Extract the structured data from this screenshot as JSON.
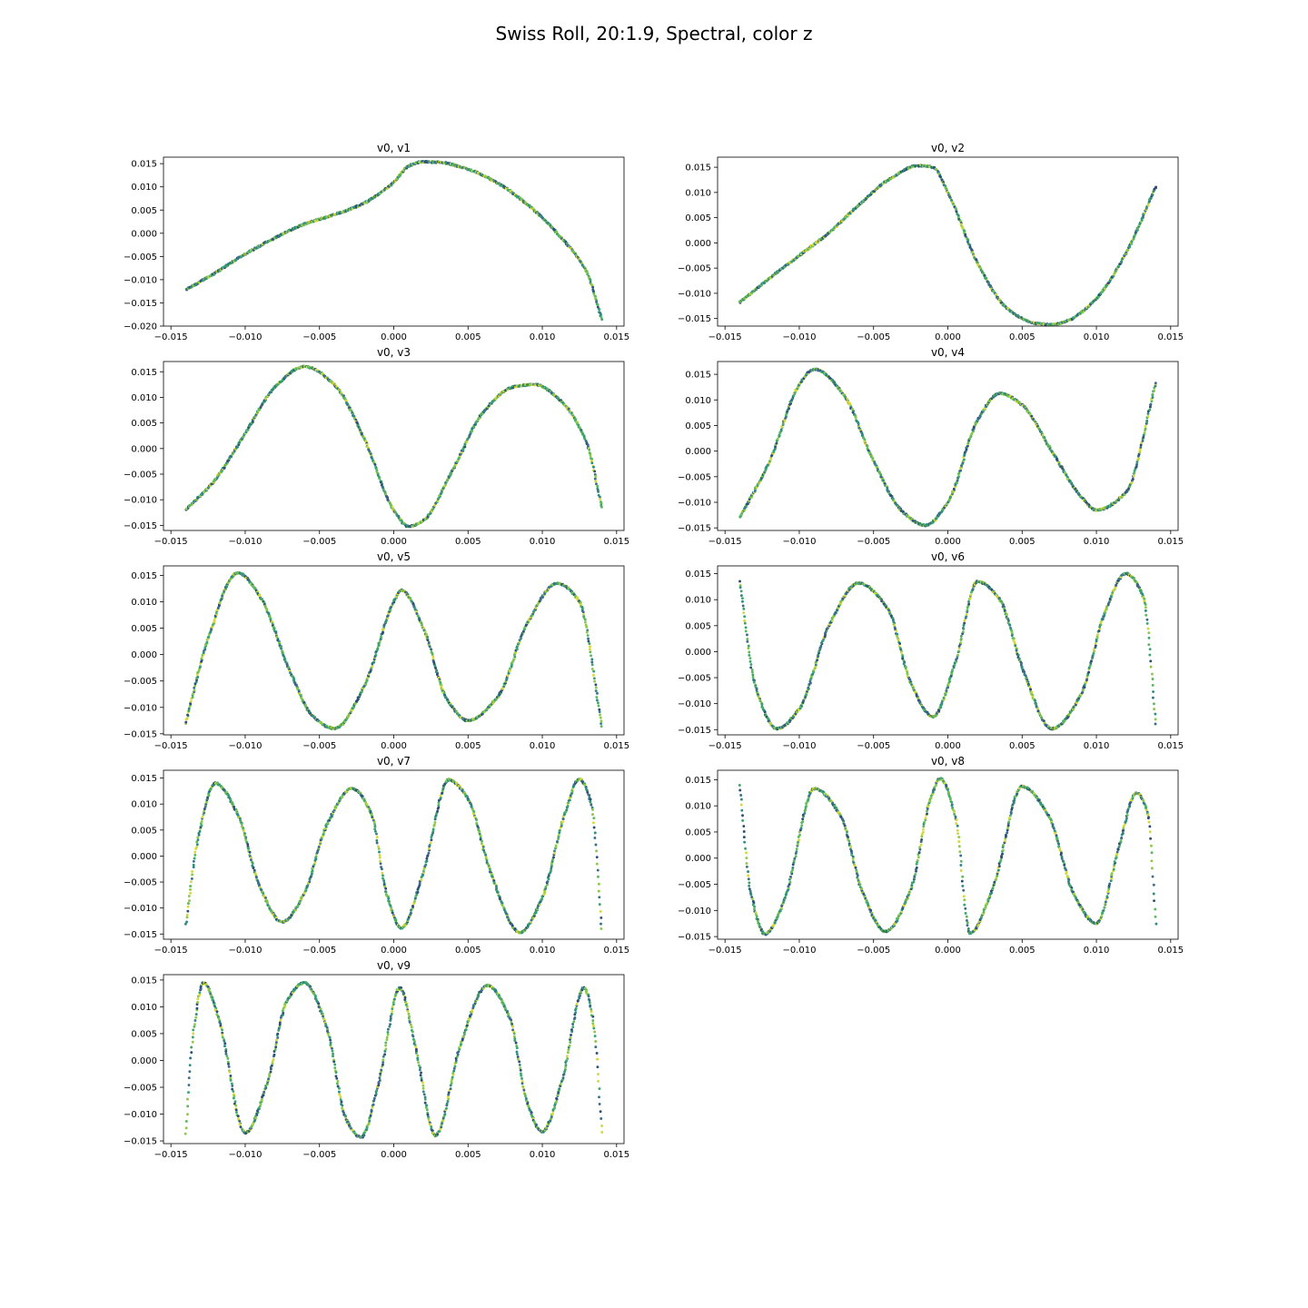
{
  "figure": {
    "title": "Swiss Roll, 20:1.9, Spectral, color z",
    "point_colors": [
      "#2d4f73",
      "#3b6e8a",
      "#2f8c7f",
      "#3aa56c",
      "#5cb85c",
      "#8cc94a",
      "#d4d83a"
    ]
  },
  "chart_data": [
    {
      "type": "scatter",
      "title": "v0, v1",
      "xlim": [
        -0.0155,
        0.0155
      ],
      "ylim": [
        -0.02,
        0.0164
      ],
      "xticks": [
        "-0.015",
        "-0.010",
        "-0.005",
        "0.000",
        "0.005",
        "0.010",
        "0.015"
      ],
      "yticks": [
        "-0.020",
        "-0.015",
        "-0.010",
        "-0.005",
        "0.000",
        "0.005",
        "0.010",
        "0.015"
      ],
      "x": [
        -0.014,
        -0.012,
        -0.01,
        -0.008,
        -0.006,
        -0.004,
        -0.002,
        0.0,
        0.001,
        0.002,
        0.003,
        0.005,
        0.007,
        0.009,
        0.011,
        0.013,
        0.014
      ],
      "y": [
        -0.0122,
        -0.0085,
        -0.0045,
        -0.001,
        0.002,
        0.004,
        0.0065,
        0.011,
        0.0145,
        0.0154,
        0.0153,
        0.0138,
        0.0108,
        0.0062,
        0.0,
        -0.0085,
        -0.0185
      ]
    },
    {
      "type": "scatter",
      "title": "v0, v2",
      "xlim": [
        -0.0155,
        0.0155
      ],
      "ylim": [
        -0.0165,
        0.017
      ],
      "xticks": [
        "-0.015",
        "-0.010",
        "-0.005",
        "0.000",
        "0.005",
        "0.010",
        "0.015"
      ],
      "yticks": [
        "-0.015",
        "-0.010",
        "-0.005",
        "0.000",
        "0.005",
        "0.010",
        "0.015"
      ],
      "x": [
        -0.014,
        -0.012,
        -0.01,
        -0.008,
        -0.006,
        -0.004,
        -0.002,
        -0.001,
        0.0,
        0.002,
        0.004,
        0.006,
        0.007,
        0.008,
        0.01,
        0.012,
        0.014
      ],
      "y": [
        -0.0118,
        -0.007,
        -0.0025,
        0.002,
        0.0075,
        0.0125,
        0.0153,
        0.015,
        0.01,
        -0.004,
        -0.013,
        -0.016,
        -0.0162,
        -0.0155,
        -0.011,
        -0.002,
        0.0112
      ]
    },
    {
      "type": "scatter",
      "title": "v0, v3",
      "xlim": [
        -0.0155,
        0.0155
      ],
      "ylim": [
        -0.016,
        0.017
      ],
      "xticks": [
        "-0.015",
        "-0.010",
        "-0.005",
        "0.000",
        "0.005",
        "0.010",
        "0.015"
      ],
      "yticks": [
        "-0.015",
        "-0.010",
        "-0.005",
        "0.000",
        "0.005",
        "0.010",
        "0.015"
      ],
      "x": [
        -0.014,
        -0.012,
        -0.01,
        -0.008,
        -0.006,
        -0.004,
        -0.002,
        0.0,
        0.001,
        0.002,
        0.004,
        0.006,
        0.008,
        0.0095,
        0.011,
        0.013,
        0.014
      ],
      "y": [
        -0.012,
        -0.006,
        0.003,
        0.012,
        0.016,
        0.0125,
        0.002,
        -0.012,
        -0.0152,
        -0.014,
        -0.004,
        0.007,
        0.012,
        0.0125,
        0.01,
        0.001,
        -0.0115
      ]
    },
    {
      "type": "scatter",
      "title": "v0, v4",
      "xlim": [
        -0.0155,
        0.0155
      ],
      "ylim": [
        -0.0155,
        0.0175
      ],
      "xticks": [
        "-0.015",
        "-0.010",
        "-0.005",
        "0.000",
        "0.005",
        "0.010",
        "0.015"
      ],
      "yticks": [
        "-0.015",
        "-0.010",
        "-0.005",
        "0.000",
        "0.005",
        "0.010",
        "0.015"
      ],
      "x": [
        -0.014,
        -0.012,
        -0.01,
        -0.009,
        -0.007,
        -0.005,
        -0.003,
        -0.0015,
        0.0,
        0.002,
        0.0035,
        0.005,
        0.007,
        0.009,
        0.01,
        0.012,
        0.014
      ],
      "y": [
        -0.013,
        -0.002,
        0.013,
        0.016,
        0.011,
        -0.002,
        -0.012,
        -0.0145,
        -0.01,
        0.006,
        0.0113,
        0.009,
        0.0,
        -0.009,
        -0.0115,
        -0.008,
        0.0133
      ]
    },
    {
      "type": "scatter",
      "title": "v0, v5",
      "xlim": [
        -0.0155,
        0.0155
      ],
      "ylim": [
        -0.0152,
        0.0168
      ],
      "xticks": [
        "-0.015",
        "-0.010",
        "-0.005",
        "0.000",
        "0.005",
        "0.010",
        "0.015"
      ],
      "yticks": [
        "-0.015",
        "-0.010",
        "-0.005",
        "0.000",
        "0.005",
        "0.010",
        "0.015"
      ],
      "x": [
        -0.014,
        -0.0125,
        -0.0105,
        -0.009,
        -0.007,
        -0.0055,
        -0.004,
        -0.002,
        0.0,
        0.0005,
        0.002,
        0.0035,
        0.005,
        0.007,
        0.009,
        0.011,
        0.0125,
        0.014
      ],
      "y": [
        -0.013,
        0.003,
        0.0155,
        0.011,
        -0.003,
        -0.0115,
        -0.014,
        -0.006,
        0.01,
        0.0122,
        0.005,
        -0.008,
        -0.0125,
        -0.008,
        0.006,
        0.0135,
        0.01,
        -0.0135
      ]
    },
    {
      "type": "scatter",
      "title": "v0, v6",
      "xlim": [
        -0.0155,
        0.0155
      ],
      "ylim": [
        -0.016,
        0.0165
      ],
      "xticks": [
        "-0.015",
        "-0.010",
        "-0.005",
        "0.000",
        "0.005",
        "0.010",
        "0.015"
      ],
      "yticks": [
        "-0.015",
        "-0.010",
        "-0.005",
        "0.000",
        "0.005",
        "0.010",
        "0.015"
      ],
      "x": [
        -0.014,
        -0.013,
        -0.0115,
        -0.01,
        -0.008,
        -0.006,
        -0.004,
        -0.0025,
        -0.001,
        0.0005,
        0.002,
        0.0035,
        0.005,
        0.007,
        0.009,
        0.0105,
        0.012,
        0.0132,
        0.014
      ],
      "y": [
        0.0135,
        -0.006,
        -0.0148,
        -0.011,
        0.005,
        0.0132,
        0.008,
        -0.006,
        -0.0125,
        -0.002,
        0.0135,
        0.01,
        -0.003,
        -0.0148,
        -0.008,
        0.007,
        0.015,
        0.01,
        -0.014
      ]
    },
    {
      "type": "scatter",
      "title": "v0, v7",
      "xlim": [
        -0.0155,
        0.0155
      ],
      "ylim": [
        -0.016,
        0.0165
      ],
      "xticks": [
        "-0.015",
        "-0.010",
        "-0.005",
        "0.000",
        "0.005",
        "0.010",
        "0.015"
      ],
      "yticks": [
        "-0.015",
        "-0.010",
        "-0.005",
        "0.000",
        "0.005",
        "0.010",
        "0.015"
      ],
      "x": [
        -0.014,
        -0.0132,
        -0.012,
        -0.0105,
        -0.009,
        -0.0075,
        -0.006,
        -0.0045,
        -0.0028,
        -0.0015,
        -0.0005,
        0.0005,
        0.002,
        0.0037,
        0.005,
        0.0065,
        0.0085,
        0.01,
        0.0115,
        0.0125,
        0.0133,
        0.014
      ],
      "y": [
        -0.0132,
        0.003,
        0.014,
        0.008,
        -0.006,
        -0.0127,
        -0.007,
        0.006,
        0.013,
        0.008,
        -0.007,
        -0.0138,
        -0.003,
        0.0147,
        0.011,
        -0.003,
        -0.0147,
        -0.008,
        0.008,
        0.0148,
        0.01,
        -0.014
      ]
    },
    {
      "type": "scatter",
      "title": "v0, v8",
      "xlim": [
        -0.0155,
        0.0155
      ],
      "ylim": [
        -0.0155,
        0.0168
      ],
      "xticks": [
        "-0.015",
        "-0.010",
        "-0.005",
        "0.000",
        "0.005",
        "0.010",
        "0.015"
      ],
      "yticks": [
        "-0.015",
        "-0.010",
        "-0.005",
        "0.000",
        "0.005",
        "0.010",
        "0.015"
      ],
      "x": [
        -0.014,
        -0.0133,
        -0.0123,
        -0.011,
        -0.009,
        -0.0072,
        -0.0058,
        -0.0042,
        -0.0025,
        -0.0012,
        -0.0005,
        0.0005,
        0.0015,
        0.003,
        0.005,
        0.0068,
        0.0085,
        0.01,
        0.0115,
        0.0127,
        0.0135,
        0.014
      ],
      "y": [
        0.014,
        -0.006,
        -0.0145,
        -0.008,
        0.0133,
        0.008,
        -0.006,
        -0.014,
        -0.006,
        0.011,
        0.0152,
        0.008,
        -0.0143,
        -0.006,
        0.0137,
        0.008,
        -0.007,
        -0.0125,
        0.002,
        0.0125,
        0.008,
        -0.0125
      ]
    },
    {
      "type": "scatter",
      "title": "v0, v9",
      "xlim": [
        -0.0155,
        0.0155
      ],
      "ylim": [
        -0.0155,
        0.016
      ],
      "xticks": [
        "-0.015",
        "-0.010",
        "-0.005",
        "0.000",
        "0.005",
        "0.010",
        "0.015"
      ],
      "yticks": [
        "-0.015",
        "-0.010",
        "-0.005",
        "0.000",
        "0.005",
        "0.010",
        "0.015"
      ],
      "x": [
        -0.014,
        -0.0135,
        -0.0128,
        -0.0118,
        -0.01,
        -0.0085,
        -0.0072,
        -0.006,
        -0.0045,
        -0.0032,
        -0.0022,
        -0.001,
        0.0004,
        0.0015,
        0.0028,
        0.0045,
        0.0063,
        0.0078,
        0.009,
        0.01,
        0.0113,
        0.0128,
        0.0135,
        0.014
      ],
      "y": [
        -0.0137,
        0.005,
        0.0145,
        0.008,
        -0.0135,
        -0.004,
        0.011,
        0.0145,
        0.006,
        -0.011,
        -0.0143,
        -0.004,
        0.0135,
        0.002,
        -0.014,
        0.003,
        0.014,
        0.008,
        -0.008,
        -0.0133,
        -0.004,
        0.0135,
        0.006,
        -0.0135
      ]
    }
  ]
}
